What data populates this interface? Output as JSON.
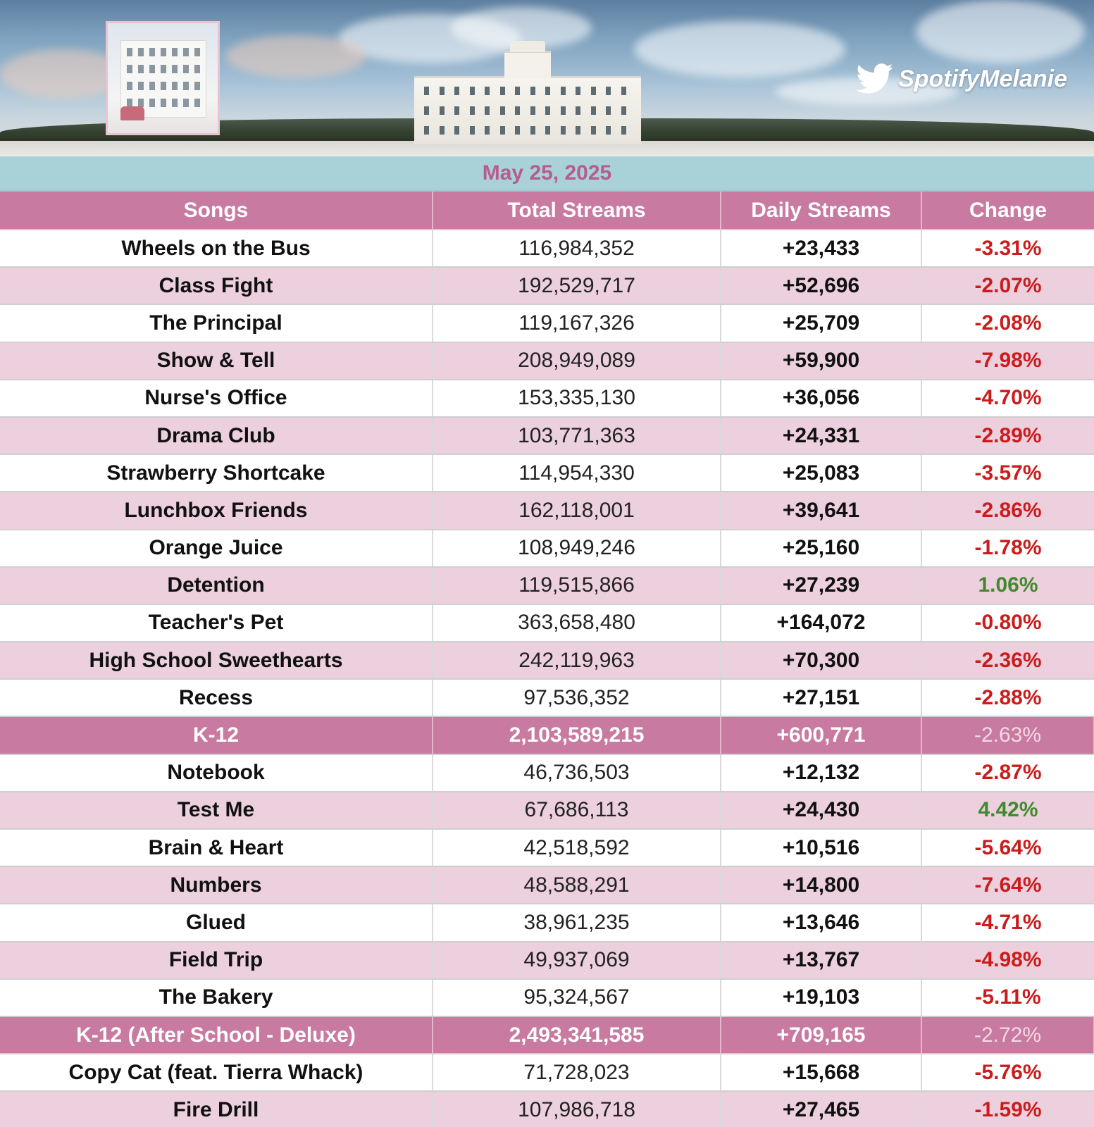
{
  "header": {
    "brand": "SpotifyMelanie",
    "brand_icon": "twitter-bird-icon",
    "date": "May 25, 2025"
  },
  "table": {
    "columns": [
      "Songs",
      "Total Streams",
      "Daily Streams",
      "Change"
    ],
    "rows": [
      {
        "song": "Wheels on the Bus",
        "total": "116,984,352",
        "daily": "+23,433",
        "change": "-3.31%",
        "trend": "down"
      },
      {
        "song": "Class Fight",
        "total": "192,529,717",
        "daily": "+52,696",
        "change": "-2.07%",
        "trend": "down"
      },
      {
        "song": "The Principal",
        "total": "119,167,326",
        "daily": "+25,709",
        "change": "-2.08%",
        "trend": "down"
      },
      {
        "song": "Show & Tell",
        "total": "208,949,089",
        "daily": "+59,900",
        "change": "-7.98%",
        "trend": "down"
      },
      {
        "song": "Nurse's Office",
        "total": "153,335,130",
        "daily": "+36,056",
        "change": "-4.70%",
        "trend": "down"
      },
      {
        "song": "Drama Club",
        "total": "103,771,363",
        "daily": "+24,331",
        "change": "-2.89%",
        "trend": "down"
      },
      {
        "song": "Strawberry Shortcake",
        "total": "114,954,330",
        "daily": "+25,083",
        "change": "-3.57%",
        "trend": "down"
      },
      {
        "song": "Lunchbox Friends",
        "total": "162,118,001",
        "daily": "+39,641",
        "change": "-2.86%",
        "trend": "down"
      },
      {
        "song": "Orange Juice",
        "total": "108,949,246",
        "daily": "+25,160",
        "change": "-1.78%",
        "trend": "down"
      },
      {
        "song": "Detention",
        "total": "119,515,866",
        "daily": "+27,239",
        "change": "1.06%",
        "trend": "up"
      },
      {
        "song": "Teacher's Pet",
        "total": "363,658,480",
        "daily": "+164,072",
        "change": "-0.80%",
        "trend": "down"
      },
      {
        "song": "High School Sweethearts",
        "total": "242,119,963",
        "daily": "+70,300",
        "change": "-2.36%",
        "trend": "down"
      },
      {
        "song": "Recess",
        "total": "97,536,352",
        "daily": "+27,151",
        "change": "-2.88%",
        "trend": "down"
      },
      {
        "song": "K-12",
        "total": "2,103,589,215",
        "daily": "+600,771",
        "change": "-2.63%",
        "trend": "total"
      },
      {
        "song": "Notebook",
        "total": "46,736,503",
        "daily": "+12,132",
        "change": "-2.87%",
        "trend": "down"
      },
      {
        "song": "Test Me",
        "total": "67,686,113",
        "daily": "+24,430",
        "change": "4.42%",
        "trend": "up"
      },
      {
        "song": "Brain & Heart",
        "total": "42,518,592",
        "daily": "+10,516",
        "change": "-5.64%",
        "trend": "down"
      },
      {
        "song": "Numbers",
        "total": "48,588,291",
        "daily": "+14,800",
        "change": "-7.64%",
        "trend": "down"
      },
      {
        "song": "Glued",
        "total": "38,961,235",
        "daily": "+13,646",
        "change": "-4.71%",
        "trend": "down"
      },
      {
        "song": "Field Trip",
        "total": "49,937,069",
        "daily": "+13,767",
        "change": "-4.98%",
        "trend": "down"
      },
      {
        "song": "The Bakery",
        "total": "95,324,567",
        "daily": "+19,103",
        "change": "-5.11%",
        "trend": "down"
      },
      {
        "song": "K-12 (After School - Deluxe)",
        "total": "2,493,341,585",
        "daily": "+709,165",
        "change": "-2.72%",
        "trend": "total"
      },
      {
        "song": "Copy Cat (feat. Tierra Whack)",
        "total": "71,728,023",
        "daily": "+15,668",
        "change": "-5.76%",
        "trend": "down"
      },
      {
        "song": "Fire Drill",
        "total": "107,986,718",
        "daily": "+27,465",
        "change": "-1.59%",
        "trend": "down"
      }
    ]
  },
  "colors": {
    "header_pink": "#c87aa0",
    "stripe_pink": "#ecd0de",
    "date_bar": "#a9d2d8",
    "date_text": "#b55d8c",
    "negative": "#cc1b1b",
    "positive": "#3f8a2c"
  }
}
